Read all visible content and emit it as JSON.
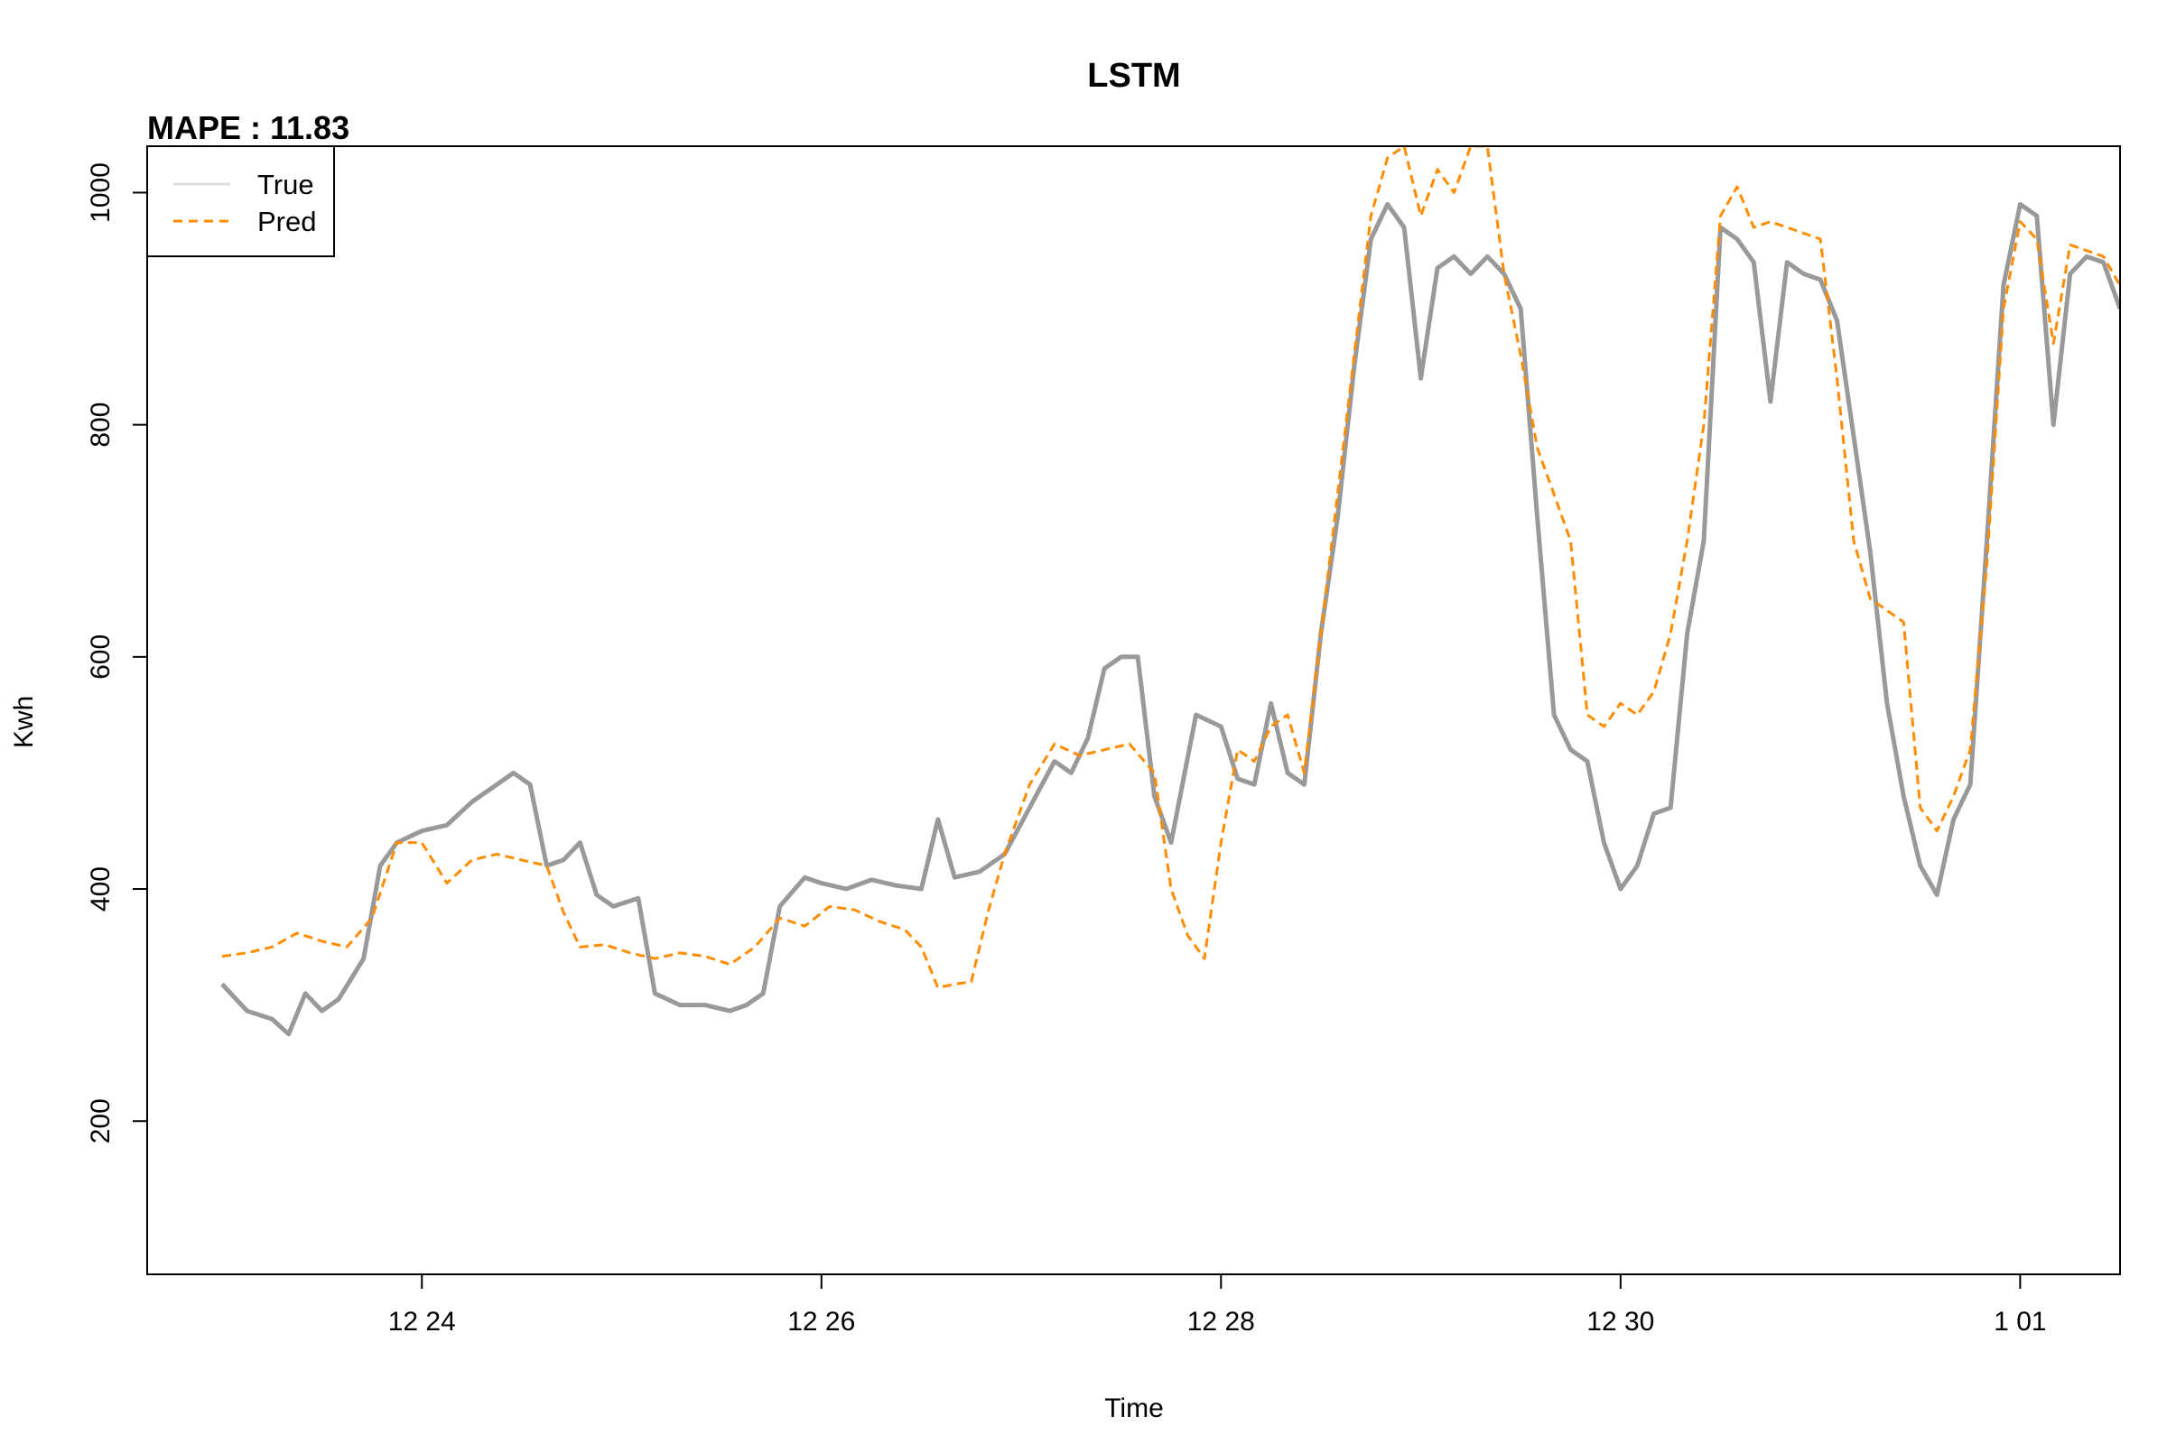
{
  "chart_data": {
    "type": "line",
    "title": "LSTM",
    "subtitle": "MAPE : 11.83",
    "xlabel": "Time",
    "ylabel": "Kwh",
    "xlim": [
      "2023-12-22T15:00",
      "2024-01-01T12:00"
    ],
    "ylim": [
      68,
      1040
    ],
    "x_ticks": [
      {
        "label": "12 24",
        "value": "2023-12-24T00:00"
      },
      {
        "label": "12 26",
        "value": "2023-12-26T00:00"
      },
      {
        "label": "12 28",
        "value": "2023-12-28T00:00"
      },
      {
        "label": "12 30",
        "value": "2023-12-30T00:00"
      },
      {
        "label": "1 01",
        "value": "2024-01-01T00:00"
      }
    ],
    "y_ticks": [
      200,
      400,
      600,
      800,
      1000
    ],
    "grid": false,
    "legend": {
      "position": "top-left"
    },
    "series": [
      {
        "name": "True",
        "color": "#999999",
        "style": "solid",
        "points": [
          [
            "2023-12-23T00:00",
            318
          ],
          [
            "2023-12-23T03:00",
            295
          ],
          [
            "2023-12-23T06:00",
            288
          ],
          [
            "2023-12-23T08:00",
            275
          ],
          [
            "2023-12-23T10:00",
            310
          ],
          [
            "2023-12-23T12:00",
            295
          ],
          [
            "2023-12-23T14:00",
            305
          ],
          [
            "2023-12-23T17:00",
            340
          ],
          [
            "2023-12-23T19:00",
            420
          ],
          [
            "2023-12-23T21:00",
            440
          ],
          [
            "2023-12-24T00:00",
            450
          ],
          [
            "2023-12-24T03:00",
            455
          ],
          [
            "2023-12-24T06:00",
            475
          ],
          [
            "2023-12-24T09:00",
            490
          ],
          [
            "2023-12-24T11:00",
            500
          ],
          [
            "2023-12-24T13:00",
            490
          ],
          [
            "2023-12-24T15:00",
            420
          ],
          [
            "2023-12-24T17:00",
            425
          ],
          [
            "2023-12-24T19:00",
            440
          ],
          [
            "2023-12-24T21:00",
            395
          ],
          [
            "2023-12-24T23:00",
            385
          ],
          [
            "2023-12-25T02:00",
            392
          ],
          [
            "2023-12-25T04:00",
            310
          ],
          [
            "2023-12-25T07:00",
            300
          ],
          [
            "2023-12-25T10:00",
            300
          ],
          [
            "2023-12-25T13:00",
            295
          ],
          [
            "2023-12-25T15:00",
            300
          ],
          [
            "2023-12-25T17:00",
            310
          ],
          [
            "2023-12-25T19:00",
            385
          ],
          [
            "2023-12-25T22:00",
            410
          ],
          [
            "2023-12-26T00:00",
            405
          ],
          [
            "2023-12-26T03:00",
            400
          ],
          [
            "2023-12-26T06:00",
            408
          ],
          [
            "2023-12-26T09:00",
            403
          ],
          [
            "2023-12-26T12:00",
            400
          ],
          [
            "2023-12-26T14:00",
            460
          ],
          [
            "2023-12-26T16:00",
            410
          ],
          [
            "2023-12-26T19:00",
            415
          ],
          [
            "2023-12-26T22:00",
            430
          ],
          [
            "2023-12-27T01:00",
            470
          ],
          [
            "2023-12-27T04:00",
            510
          ],
          [
            "2023-12-27T06:00",
            500
          ],
          [
            "2023-12-27T08:00",
            530
          ],
          [
            "2023-12-27T10:00",
            590
          ],
          [
            "2023-12-27T12:00",
            600
          ],
          [
            "2023-12-27T14:00",
            600
          ],
          [
            "2023-12-27T16:00",
            480
          ],
          [
            "2023-12-27T18:00",
            440
          ],
          [
            "2023-12-27T21:00",
            550
          ],
          [
            "2023-12-28T00:00",
            540
          ],
          [
            "2023-12-28T02:00",
            495
          ],
          [
            "2023-12-28T04:00",
            490
          ],
          [
            "2023-12-28T06:00",
            560
          ],
          [
            "2023-12-28T08:00",
            500
          ],
          [
            "2023-12-28T10:00",
            490
          ],
          [
            "2023-12-28T12:00",
            620
          ],
          [
            "2023-12-28T14:00",
            720
          ],
          [
            "2023-12-28T16:00",
            850
          ],
          [
            "2023-12-28T18:00",
            960
          ],
          [
            "2023-12-28T20:00",
            990
          ],
          [
            "2023-12-28T22:00",
            970
          ],
          [
            "2023-12-29T00:00",
            840
          ],
          [
            "2023-12-29T02:00",
            935
          ],
          [
            "2023-12-29T04:00",
            945
          ],
          [
            "2023-12-29T06:00",
            930
          ],
          [
            "2023-12-29T08:00",
            945
          ],
          [
            "2023-12-29T10:00",
            930
          ],
          [
            "2023-12-29T12:00",
            900
          ],
          [
            "2023-12-29T14:00",
            720
          ],
          [
            "2023-12-29T16:00",
            550
          ],
          [
            "2023-12-29T18:00",
            520
          ],
          [
            "2023-12-29T20:00",
            510
          ],
          [
            "2023-12-29T22:00",
            440
          ],
          [
            "2023-12-30T00:00",
            400
          ],
          [
            "2023-12-30T02:00",
            420
          ],
          [
            "2023-12-30T04:00",
            465
          ],
          [
            "2023-12-30T06:00",
            470
          ],
          [
            "2023-12-30T08:00",
            620
          ],
          [
            "2023-12-30T10:00",
            700
          ],
          [
            "2023-12-30T12:00",
            970
          ],
          [
            "2023-12-30T14:00",
            960
          ],
          [
            "2023-12-30T16:00",
            940
          ],
          [
            "2023-12-30T18:00",
            820
          ],
          [
            "2023-12-30T20:00",
            940
          ],
          [
            "2023-12-30T22:00",
            930
          ],
          [
            "2023-12-31T00:00",
            925
          ],
          [
            "2023-12-31T02:00",
            890
          ],
          [
            "2023-12-31T04:00",
            790
          ],
          [
            "2023-12-31T06:00",
            690
          ],
          [
            "2023-12-31T08:00",
            560
          ],
          [
            "2023-12-31T10:00",
            480
          ],
          [
            "2023-12-31T12:00",
            420
          ],
          [
            "2023-12-31T14:00",
            395
          ],
          [
            "2023-12-31T16:00",
            460
          ],
          [
            "2023-12-31T18:00",
            490
          ],
          [
            "2023-12-31T20:00",
            700
          ],
          [
            "2023-12-31T22:00",
            920
          ],
          [
            "2024-01-01T00:00",
            990
          ],
          [
            "2024-01-01T02:00",
            980
          ],
          [
            "2024-01-01T04:00",
            800
          ],
          [
            "2024-01-01T06:00",
            930
          ],
          [
            "2024-01-01T08:00",
            945
          ],
          [
            "2024-01-01T10:00",
            940
          ],
          [
            "2024-01-01T12:00",
            900
          ]
        ]
      },
      {
        "name": "Pred",
        "color": "#ff8c00",
        "style": "dashed",
        "points": [
          [
            "2023-12-23T00:00",
            342
          ],
          [
            "2023-12-23T03:00",
            345
          ],
          [
            "2023-12-23T06:00",
            350
          ],
          [
            "2023-12-23T09:00",
            362
          ],
          [
            "2023-12-23T12:00",
            355
          ],
          [
            "2023-12-23T15:00",
            350
          ],
          [
            "2023-12-23T18:00",
            375
          ],
          [
            "2023-12-23T21:00",
            440
          ],
          [
            "2023-12-24T00:00",
            440
          ],
          [
            "2023-12-24T03:00",
            405
          ],
          [
            "2023-12-24T06:00",
            425
          ],
          [
            "2023-12-24T09:00",
            430
          ],
          [
            "2023-12-24T12:00",
            425
          ],
          [
            "2023-12-24T15:00",
            420
          ],
          [
            "2023-12-24T17:00",
            380
          ],
          [
            "2023-12-24T19:00",
            350
          ],
          [
            "2023-12-24T22:00",
            352
          ],
          [
            "2023-12-25T01:00",
            345
          ],
          [
            "2023-12-25T04:00",
            340
          ],
          [
            "2023-12-25T07:00",
            345
          ],
          [
            "2023-12-25T10:00",
            342
          ],
          [
            "2023-12-25T13:00",
            335
          ],
          [
            "2023-12-25T16:00",
            350
          ],
          [
            "2023-12-25T19:00",
            375
          ],
          [
            "2023-12-25T22:00",
            368
          ],
          [
            "2023-12-26T01:00",
            385
          ],
          [
            "2023-12-26T04:00",
            382
          ],
          [
            "2023-12-26T07:00",
            372
          ],
          [
            "2023-12-26T10:00",
            365
          ],
          [
            "2023-12-26T12:00",
            350
          ],
          [
            "2023-12-26T14:00",
            315
          ],
          [
            "2023-12-26T16:00",
            318
          ],
          [
            "2023-12-26T18:00",
            320
          ],
          [
            "2023-12-26T20:00",
            380
          ],
          [
            "2023-12-26T22:00",
            430
          ],
          [
            "2023-12-27T01:00",
            490
          ],
          [
            "2023-12-27T04:00",
            525
          ],
          [
            "2023-12-27T07:00",
            515
          ],
          [
            "2023-12-27T10:00",
            520
          ],
          [
            "2023-12-27T13:00",
            525
          ],
          [
            "2023-12-27T16:00",
            500
          ],
          [
            "2023-12-27T18:00",
            400
          ],
          [
            "2023-12-27T20:00",
            360
          ],
          [
            "2023-12-27T22:00",
            340
          ],
          [
            "2023-12-28T00:00",
            440
          ],
          [
            "2023-12-28T02:00",
            520
          ],
          [
            "2023-12-28T04:00",
            510
          ],
          [
            "2023-12-28T06:00",
            540
          ],
          [
            "2023-12-28T08:00",
            550
          ],
          [
            "2023-12-28T10:00",
            500
          ],
          [
            "2023-12-28T12:00",
            620
          ],
          [
            "2023-12-28T14:00",
            740
          ],
          [
            "2023-12-28T16:00",
            860
          ],
          [
            "2023-12-28T18:00",
            980
          ],
          [
            "2023-12-28T20:00",
            1030
          ],
          [
            "2023-12-28T22:00",
            1040
          ],
          [
            "2023-12-29T00:00",
            980
          ],
          [
            "2023-12-29T02:00",
            1020
          ],
          [
            "2023-12-29T04:00",
            1000
          ],
          [
            "2023-12-29T06:00",
            1040
          ],
          [
            "2023-12-29T08:00",
            1040
          ],
          [
            "2023-12-29T10:00",
            930
          ],
          [
            "2023-12-29T12:00",
            860
          ],
          [
            "2023-12-29T14:00",
            780
          ],
          [
            "2023-12-29T16:00",
            740
          ],
          [
            "2023-12-29T18:00",
            700
          ],
          [
            "2023-12-29T20:00",
            550
          ],
          [
            "2023-12-29T22:00",
            540
          ],
          [
            "2023-12-30T00:00",
            560
          ],
          [
            "2023-12-30T02:00",
            550
          ],
          [
            "2023-12-30T04:00",
            570
          ],
          [
            "2023-12-30T06:00",
            620
          ],
          [
            "2023-12-30T08:00",
            700
          ],
          [
            "2023-12-30T10:00",
            800
          ],
          [
            "2023-12-30T12:00",
            980
          ],
          [
            "2023-12-30T14:00",
            1005
          ],
          [
            "2023-12-30T16:00",
            970
          ],
          [
            "2023-12-30T18:00",
            975
          ],
          [
            "2023-12-30T20:00",
            970
          ],
          [
            "2023-12-30T22:00",
            965
          ],
          [
            "2023-12-31T00:00",
            960
          ],
          [
            "2023-12-31T02:00",
            840
          ],
          [
            "2023-12-31T04:00",
            700
          ],
          [
            "2023-12-31T06:00",
            650
          ],
          [
            "2023-12-31T08:00",
            640
          ],
          [
            "2023-12-31T10:00",
            630
          ],
          [
            "2023-12-31T12:00",
            470
          ],
          [
            "2023-12-31T14:00",
            450
          ],
          [
            "2023-12-31T16:00",
            480
          ],
          [
            "2023-12-31T18:00",
            520
          ],
          [
            "2023-12-31T20:00",
            680
          ],
          [
            "2023-12-31T22:00",
            900
          ],
          [
            "2024-01-01T00:00",
            975
          ],
          [
            "2024-01-01T02:00",
            960
          ],
          [
            "2024-01-01T04:00",
            870
          ],
          [
            "2024-01-01T06:00",
            955
          ],
          [
            "2024-01-01T08:00",
            950
          ],
          [
            "2024-01-01T10:00",
            945
          ],
          [
            "2024-01-01T12:00",
            920
          ]
        ]
      }
    ]
  }
}
